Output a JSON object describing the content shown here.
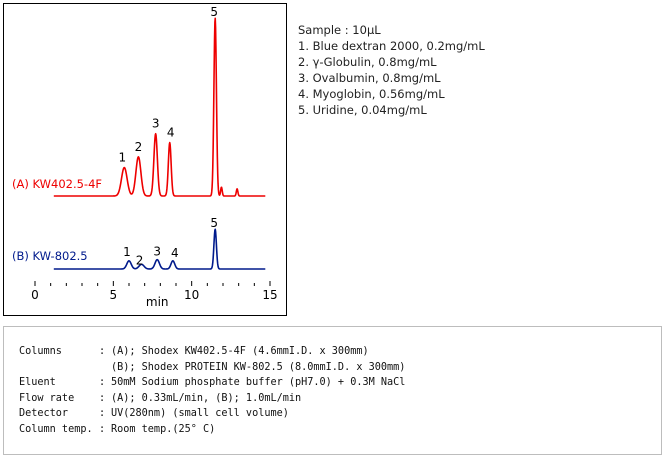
{
  "chart_data": {
    "type": "line",
    "xlabel": "min",
    "xlim": [
      0,
      15
    ],
    "x_ticks": [
      "0",
      "5",
      "10",
      "15"
    ],
    "series": [
      {
        "name": "(A) KW402.5-4F",
        "color": "#ee0000",
        "baseline": 0,
        "peaks": [
          {
            "label": "1",
            "rt": 5.7,
            "height": 0.16,
            "width": 0.18
          },
          {
            "label": "2",
            "rt": 6.6,
            "height": 0.22,
            "width": 0.16
          },
          {
            "label": "3",
            "rt": 7.7,
            "height": 0.35,
            "width": 0.11
          },
          {
            "label": "4",
            "rt": 8.6,
            "height": 0.3,
            "width": 0.09
          },
          {
            "label": "5",
            "rt": 11.5,
            "height": 1.0,
            "width": 0.08
          }
        ],
        "extra_peaks": [
          {
            "rt": 11.9,
            "height": 0.05,
            "width": 0.05
          },
          {
            "rt": 12.9,
            "height": 0.04,
            "width": 0.05
          }
        ]
      },
      {
        "name": "(B) KW-802.5",
        "color": "#001a8c",
        "baseline": 0,
        "peaks": [
          {
            "label": "1",
            "rt": 6.0,
            "height": 0.07,
            "width": 0.14
          },
          {
            "label": "2",
            "rt": 6.8,
            "height": 0.04,
            "width": 0.16
          },
          {
            "label": "3",
            "rt": 7.8,
            "height": 0.08,
            "width": 0.14
          },
          {
            "label": "4",
            "rt": 8.8,
            "height": 0.07,
            "width": 0.12
          },
          {
            "label": "5",
            "rt": 11.5,
            "height": 0.34,
            "width": 0.08
          }
        ],
        "extra_peaks": []
      }
    ]
  },
  "sample": {
    "title": "Sample : 10μL",
    "items": [
      "1. Blue dextran 2000, 0.2mg/mL",
      "2. γ-Globulin, 0.8mg/mL",
      "3. Ovalbumin, 0.8mg/mL",
      "4. Myoglobin, 0.56mg/mL",
      "5. Uridine, 0.04mg/mL"
    ]
  },
  "conditions": [
    {
      "label": "Columns",
      "value": "(A); Shodex KW402.5-4F (4.6mmI.D. x 300mm)"
    },
    {
      "label": "",
      "value": "(B); Shodex PROTEIN KW-802.5 (8.0mmI.D. x 300mm)"
    },
    {
      "label": "Eluent",
      "value": "50mM Sodium phosphate buffer (pH7.0) + 0.3M NaCl"
    },
    {
      "label": "Flow rate",
      "value": "(A); 0.33mL/min, (B); 1.0mL/min"
    },
    {
      "label": "Detector",
      "value": "UV(280nm) (small cell volume)"
    },
    {
      "label": "Column temp.",
      "value": "Room temp.(25° C)"
    }
  ]
}
